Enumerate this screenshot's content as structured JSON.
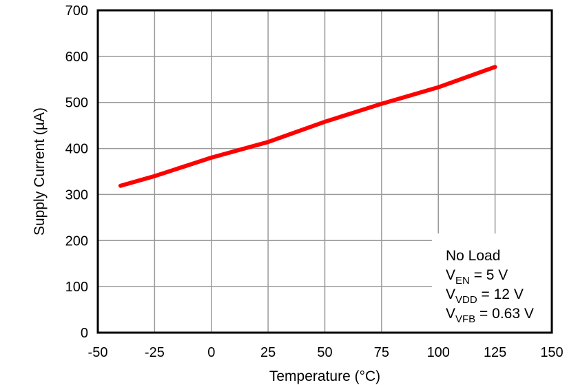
{
  "chart_data": {
    "type": "line",
    "title": "",
    "xlabel": "Temperature (°C)",
    "ylabel": "Supply Current (µA)",
    "xlim": [
      -50,
      150
    ],
    "ylim": [
      0,
      700
    ],
    "xticks": [
      -50,
      -25,
      0,
      25,
      50,
      75,
      100,
      125,
      150
    ],
    "yticks": [
      0,
      100,
      200,
      300,
      400,
      500,
      600,
      700
    ],
    "grid": true,
    "legend": null,
    "series": [
      {
        "name": "Supply Current",
        "color": "#ff0000",
        "x": [
          -40,
          -25,
          0,
          25,
          50,
          75,
          100,
          125
        ],
        "y": [
          319,
          340,
          380,
          414,
          458,
          497,
          533,
          577
        ]
      }
    ],
    "annotation": {
      "lines": [
        {
          "main": "No Load",
          "sub": "",
          "rest": ""
        },
        {
          "main": "V",
          "sub": "EN",
          "rest": " = 5 V"
        },
        {
          "main": "V",
          "sub": "VDD",
          "rest": " = 12 V"
        },
        {
          "main": "V",
          "sub": "VFB",
          "rest": " = 0.63 V"
        }
      ]
    }
  },
  "colors": {
    "line": "#ff0000",
    "grid": "#999999",
    "frame": "#000000",
    "background": "#ffffff"
  }
}
